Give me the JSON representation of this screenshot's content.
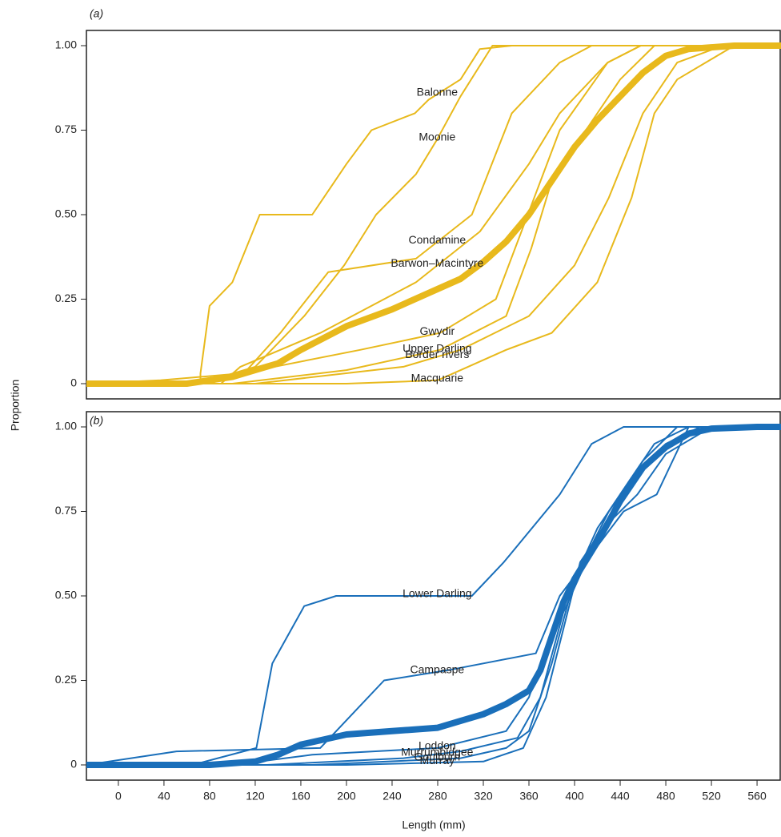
{
  "chart_data": [
    {
      "type": "line",
      "panel_label": "(a)",
      "ylabel": "Proportion",
      "xlim": [
        -28,
        581
      ],
      "ylim": [
        -0.045,
        1.045
      ],
      "yticks": [
        0,
        {
          "value": 0.25,
          "label": "0.25"
        },
        {
          "value": 0.5,
          "label": "0.50"
        },
        {
          "value": 0.75,
          "label": "0.75"
        },
        {
          "value": 1,
          "label": "1.00"
        }
      ],
      "series": [
        {
          "name": "Balonne",
          "color": "#e8b91c",
          "x": [
            -28,
            72,
            72,
            80,
            100,
            124,
            170,
            200,
            222,
            260,
            272,
            300,
            317,
            345,
            581
          ],
          "values": [
            0,
            0,
            0.03,
            0.23,
            0.3,
            0.5,
            0.5,
            0.65,
            0.75,
            0.8,
            0.84,
            0.9,
            0.99,
            1,
            1
          ]
        },
        {
          "name": "Moonie",
          "color": "#e8b91c",
          "x": [
            -28,
            70,
            120,
            163,
            198,
            226,
            261,
            279,
            300,
            328,
            581
          ],
          "values": [
            0,
            0,
            0.05,
            0.2,
            0.35,
            0.5,
            0.62,
            0.72,
            0.85,
            1,
            1
          ]
        },
        {
          "name": "Condamine",
          "color": "#e8b91c",
          "x": [
            -28,
            79,
            110,
            142,
            184,
            261,
            310,
            345,
            387,
            415,
            581
          ],
          "values": [
            0,
            0,
            0.03,
            0.15,
            0.33,
            0.37,
            0.5,
            0.8,
            0.95,
            1,
            1
          ]
        },
        {
          "name": "Barwon–Macintyre",
          "color": "#e8b91c",
          "x": [
            -28,
            90,
            107,
            177,
            261,
            317,
            360,
            387,
            429,
            458,
            581
          ],
          "values": [
            0,
            0,
            0.05,
            0.15,
            0.3,
            0.45,
            0.65,
            0.8,
            0.95,
            1,
            1
          ]
        },
        {
          "name": "Gwydir",
          "color": "#e8b91c",
          "x": [
            -28,
            37,
            107,
            212,
            282,
            331,
            359,
            387,
            429,
            458,
            581
          ],
          "values": [
            0,
            0.01,
            0.03,
            0.1,
            0.15,
            0.25,
            0.5,
            0.75,
            0.95,
            1,
            1
          ]
        },
        {
          "name": "Upper Darling",
          "color": "#e8b91c",
          "x": [
            -28,
            100,
            200,
            282,
            340,
            362,
            380,
            400,
            440,
            470,
            581
          ],
          "values": [
            0,
            0,
            0.04,
            0.1,
            0.2,
            0.4,
            0.6,
            0.7,
            0.9,
            1,
            1
          ]
        },
        {
          "name": "Border rivers",
          "color": "#e8b91c",
          "x": [
            -28,
            120,
            250,
            300,
            360,
            400,
            430,
            460,
            490,
            530,
            581
          ],
          "values": [
            0,
            0,
            0.05,
            0.1,
            0.2,
            0.35,
            0.55,
            0.8,
            0.95,
            1,
            1
          ]
        },
        {
          "name": "Macquarie",
          "color": "#e8b91c",
          "x": [
            -28,
            200,
            280,
            340,
            380,
            420,
            450,
            470,
            490,
            540,
            581
          ],
          "values": [
            0,
            0,
            0.01,
            0.1,
            0.15,
            0.3,
            0.55,
            0.8,
            0.9,
            1,
            1
          ]
        },
        {
          "color": "#e8b91c",
          "bold": true,
          "x": [
            -28,
            60,
            80,
            100,
            120,
            140,
            160,
            200,
            240,
            280,
            300,
            320,
            340,
            360,
            380,
            400,
            420,
            440,
            460,
            480,
            500,
            540,
            581
          ],
          "values": [
            0,
            0,
            0.01,
            0.02,
            0.04,
            0.06,
            0.1,
            0.17,
            0.22,
            0.28,
            0.31,
            0.36,
            0.42,
            0.5,
            0.6,
            0.7,
            0.78,
            0.85,
            0.92,
            0.97,
            0.99,
            1,
            1
          ]
        }
      ]
    },
    {
      "type": "line",
      "panel_label": "(b)",
      "xlabel": "Length (mm)",
      "xlim": [
        -28,
        581
      ],
      "ylim": [
        -0.045,
        1.045
      ],
      "xticks": [
        0,
        40,
        80,
        120,
        160,
        200,
        240,
        280,
        320,
        360,
        400,
        440,
        480,
        520,
        560
      ],
      "yticks": [
        0,
        {
          "value": 0.25,
          "label": "0.25"
        },
        {
          "value": 0.5,
          "label": "0.50"
        },
        {
          "value": 0.75,
          "label": "0.75"
        },
        {
          "value": 1,
          "label": "1.00"
        }
      ],
      "series": [
        {
          "name": "Lower Darling",
          "color": "#1a6fba",
          "x": [
            -28,
            65,
            121,
            135,
            163,
            191,
            310,
            338,
            387,
            415,
            443,
            581
          ],
          "values": [
            0,
            0,
            0.05,
            0.3,
            0.47,
            0.5,
            0.5,
            0.6,
            0.8,
            0.95,
            1,
            1
          ]
        },
        {
          "name": "Campaspe",
          "color": "#1a6fba",
          "x": [
            -28,
            51,
            177,
            233,
            289,
            366,
            387,
            443,
            472,
            500,
            581
          ],
          "values": [
            0,
            0.04,
            0.05,
            0.25,
            0.28,
            0.33,
            0.5,
            0.75,
            0.8,
            1,
            1
          ]
        },
        {
          "name": "Loddon",
          "color": "#1a6fba",
          "x": [
            -28,
            100,
            170,
            280,
            340,
            360,
            380,
            400,
            430,
            460,
            490,
            581
          ],
          "values": [
            0,
            0,
            0.03,
            0.05,
            0.1,
            0.2,
            0.4,
            0.55,
            0.75,
            0.9,
            1,
            1
          ]
        },
        {
          "name": "Murrumbidgee",
          "color": "#1a6fba",
          "x": [
            -28,
            130,
            250,
            300,
            350,
            370,
            390,
            410,
            440,
            470,
            500,
            581
          ],
          "values": [
            0,
            0,
            0.02,
            0.04,
            0.08,
            0.2,
            0.45,
            0.6,
            0.8,
            0.95,
            1,
            1
          ]
        },
        {
          "name": "Goulburn",
          "color": "#1a6fba",
          "x": [
            -28,
            170,
            300,
            340,
            360,
            380,
            400,
            420,
            450,
            480,
            510,
            581
          ],
          "values": [
            0,
            0,
            0.02,
            0.05,
            0.1,
            0.3,
            0.55,
            0.7,
            0.85,
            0.95,
            1,
            1
          ]
        },
        {
          "name": "Murray",
          "color": "#1a6fba",
          "x": [
            -28,
            200,
            320,
            355,
            375,
            390,
            405,
            425,
            455,
            480,
            520,
            581
          ],
          "values": [
            0,
            0,
            0.01,
            0.05,
            0.2,
            0.4,
            0.6,
            0.7,
            0.8,
            0.92,
            1,
            1
          ]
        },
        {
          "color": "#1a6fba",
          "bold": true,
          "x": [
            -28,
            80,
            100,
            120,
            140,
            160,
            200,
            240,
            280,
            300,
            320,
            340,
            360,
            370,
            380,
            390,
            400,
            420,
            440,
            460,
            480,
            500,
            520,
            560,
            581
          ],
          "values": [
            0,
            0,
            0.005,
            0.01,
            0.03,
            0.06,
            0.09,
            0.1,
            0.11,
            0.13,
            0.15,
            0.18,
            0.22,
            0.28,
            0.38,
            0.48,
            0.55,
            0.66,
            0.78,
            0.88,
            0.94,
            0.98,
            0.995,
            1,
            1
          ]
        }
      ]
    }
  ]
}
